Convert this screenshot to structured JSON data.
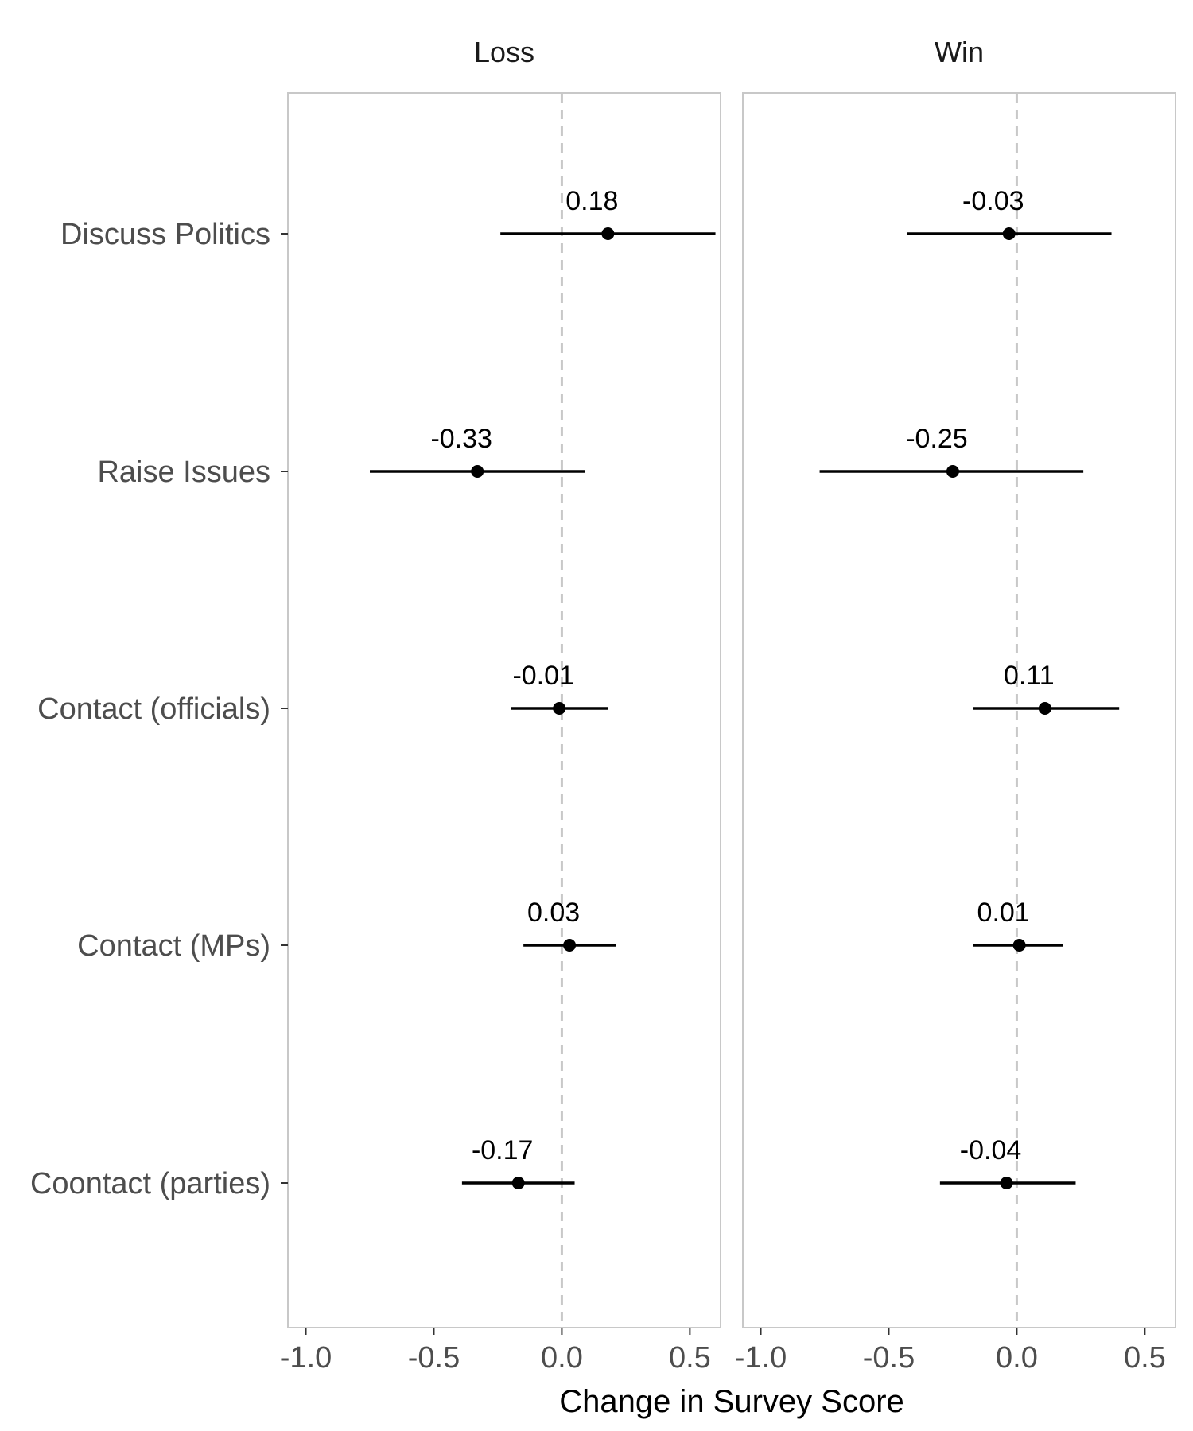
{
  "chart_data": {
    "type": "scatter",
    "subtype": "dot-and-whisker",
    "xlabel": "Change in Survey Score",
    "xlim": [
      -1.07,
      0.62
    ],
    "x_ticks": [
      "-1.0",
      "-0.5",
      "0.0",
      "0.5"
    ],
    "x_tick_values": [
      -1.0,
      -0.5,
      0.0,
      0.5
    ],
    "reference_line": 0,
    "grid": false,
    "categories": [
      "Discuss Politics",
      "Raise Issues",
      "Contact (officials)",
      "Contact (MPs)",
      "Coontact (parties)"
    ],
    "panels": [
      {
        "name": "Loss",
        "points": [
          {
            "category": "Discuss Politics",
            "estimate": 0.18,
            "lower": -0.24,
            "upper": 0.6,
            "label": "0.18"
          },
          {
            "category": "Raise Issues",
            "estimate": -0.33,
            "lower": -0.75,
            "upper": 0.09,
            "label": "-0.33"
          },
          {
            "category": "Contact (officials)",
            "estimate": -0.01,
            "lower": -0.2,
            "upper": 0.18,
            "label": "-0.01"
          },
          {
            "category": "Contact (MPs)",
            "estimate": 0.03,
            "lower": -0.15,
            "upper": 0.21,
            "label": "0.03"
          },
          {
            "category": "Coontact (parties)",
            "estimate": -0.17,
            "lower": -0.39,
            "upper": 0.05,
            "label": "-0.17"
          }
        ]
      },
      {
        "name": "Win",
        "points": [
          {
            "category": "Discuss Politics",
            "estimate": -0.03,
            "lower": -0.43,
            "upper": 0.37,
            "label": "-0.03"
          },
          {
            "category": "Raise Issues",
            "estimate": -0.25,
            "lower": -0.77,
            "upper": 0.26,
            "label": "-0.25"
          },
          {
            "category": "Contact (officials)",
            "estimate": 0.11,
            "lower": -0.17,
            "upper": 0.4,
            "label": "0.11"
          },
          {
            "category": "Contact (MPs)",
            "estimate": 0.01,
            "lower": -0.17,
            "upper": 0.18,
            "label": "0.01"
          },
          {
            "category": "Coontact (parties)",
            "estimate": -0.04,
            "lower": -0.3,
            "upper": 0.23,
            "label": "-0.04"
          }
        ]
      }
    ]
  }
}
